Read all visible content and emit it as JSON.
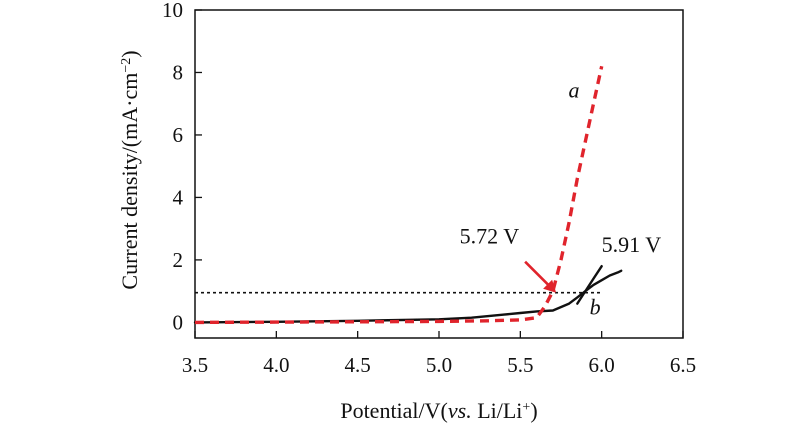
{
  "chart_data": {
    "type": "line",
    "title": "",
    "xlabel": {
      "prefix": "Potential/V(",
      "italic": "vs.",
      "suffix_main": " Li/Li",
      "suffix_sup": "+",
      "suffix_end": ")"
    },
    "ylabel": {
      "main": "Current density/(mA·cm",
      "sup": "−2",
      "end": ")"
    },
    "xlim": [
      3.5,
      6.5
    ],
    "ylim": [
      -0.5,
      10
    ],
    "xticks": [
      3.5,
      4.0,
      4.5,
      5.0,
      5.5,
      6.0,
      6.5
    ],
    "xtick_labels": [
      "3.5",
      "4.0",
      "4.5",
      "5.0",
      "5.5",
      "6.0",
      "6.5"
    ],
    "yticks": [
      0,
      2,
      4,
      6,
      8,
      10
    ],
    "ytick_labels": [
      "0",
      "2",
      "4",
      "6",
      "8",
      "10"
    ],
    "grid": false,
    "series": [
      {
        "name": "a",
        "color": "#e0242c",
        "style": "dashed",
        "x": [
          3.5,
          4.0,
          4.5,
          5.0,
          5.3,
          5.5,
          5.6,
          5.65,
          5.7,
          5.75,
          5.8,
          5.85,
          5.9,
          5.95,
          6.0
        ],
        "y": [
          0.0,
          0.01,
          0.02,
          0.03,
          0.05,
          0.08,
          0.15,
          0.5,
          1.0,
          2.0,
          3.2,
          4.6,
          5.8,
          7.0,
          8.2
        ]
      },
      {
        "name": "b",
        "color": "#111111",
        "style": "solid",
        "x": [
          3.5,
          4.0,
          4.5,
          5.0,
          5.2,
          5.4,
          5.5,
          5.6,
          5.7,
          5.8,
          5.85,
          5.9,
          5.95,
          6.0,
          6.05,
          6.1,
          6.12
        ],
        "y": [
          0.0,
          0.02,
          0.05,
          0.1,
          0.15,
          0.25,
          0.3,
          0.35,
          0.38,
          0.6,
          0.8,
          1.0,
          1.2,
          1.35,
          1.5,
          1.6,
          1.65
        ],
        "branch": {
          "x": [
            5.85,
            5.9,
            5.95,
            6.0
          ],
          "y": [
            0.6,
            1.0,
            1.4,
            1.8
          ]
        }
      }
    ],
    "reference_line": {
      "y": 0.95,
      "x": [
        3.5,
        6.0
      ],
      "color": "#111111",
      "style": "dotted"
    },
    "annotations": [
      {
        "text": "5.72 V",
        "value": 5.72,
        "arrow_to": [
          5.72,
          0.95
        ],
        "arrow_color": "#e0242c"
      },
      {
        "text": "5.91 V",
        "value": 5.91
      }
    ],
    "curve_labels": [
      {
        "text": "a",
        "series": "a",
        "at": [
          5.83,
          7.2
        ]
      },
      {
        "text": "b",
        "series": "b",
        "at": [
          5.96,
          0.25
        ]
      }
    ]
  }
}
